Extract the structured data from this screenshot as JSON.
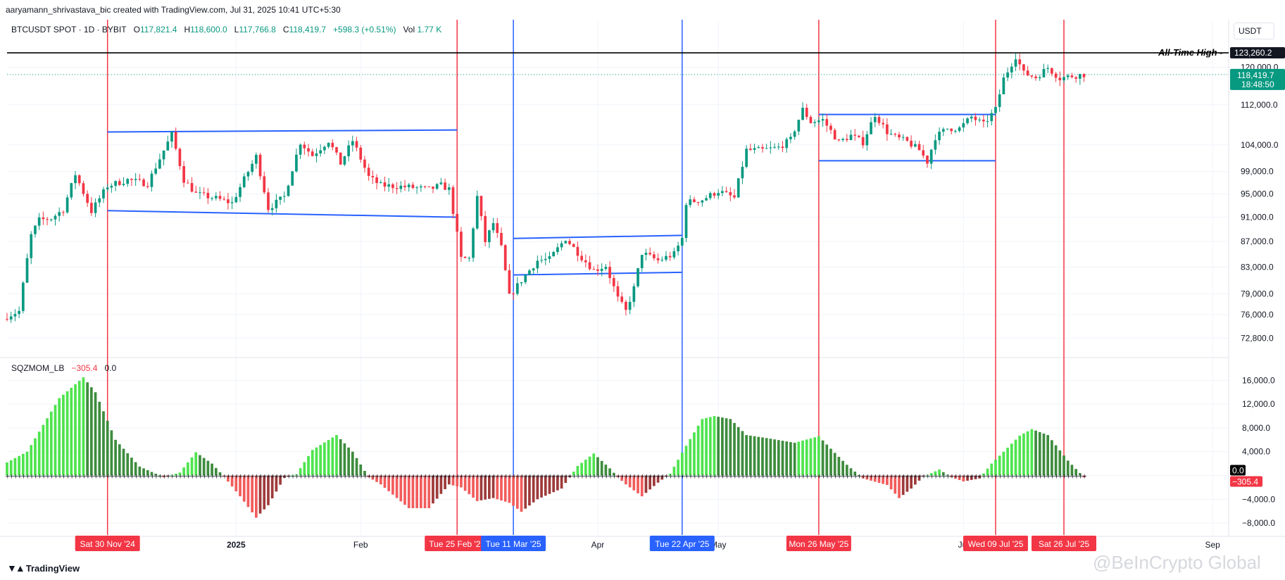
{
  "header": {
    "credit": "aaryamann_shrivastava_bic created with TradingView.com, Jul 31, 2025 10:41 UTC+5:30",
    "symbol": "BTCUSDT SPOT · 1D · BYBIT",
    "open_k": "O",
    "open": "117,821.4",
    "high_k": "H",
    "high": "118,600.0",
    "low_k": "L",
    "low": "117,766.8",
    "close_k": "C",
    "close": "118,419.7",
    "change": "+598.3 (+0.51%)",
    "vol_k": "Vol",
    "vol": "1.77 K",
    "currency": "USDT"
  },
  "indicator_header": {
    "name": "SQZMOM_LB",
    "value1": "−305.4",
    "value2": "0.0"
  },
  "footer": {
    "logo": "TradingView",
    "watermark": "@BeInCrypto Global"
  },
  "colors": {
    "up": "#089981",
    "down": "#f23645",
    "channel": "#2962ff",
    "event_red": "#f23645",
    "event_blue": "#2962ff",
    "hist_lime": "#4ee44e",
    "hist_green": "#3d8c3d",
    "hist_red": "#f25c5c",
    "hist_maroon": "#9e3a3a"
  },
  "chart_data": [
    {
      "type": "candlestick",
      "title": "BTCUSDT SPOT · 1D · BYBIT",
      "y_scale": "log",
      "ylim": [
        70500,
        129000
      ],
      "y_ticks": [
        {
          "value": 120000,
          "label": "120,000.0"
        },
        {
          "value": 112000,
          "label": "112,000.0"
        },
        {
          "value": 104000,
          "label": "104,000.0"
        },
        {
          "value": 99000,
          "label": "99,000.0"
        },
        {
          "value": 95000,
          "label": "95,000.0"
        },
        {
          "value": 91000,
          "label": "91,000.0"
        },
        {
          "value": 87000,
          "label": "87,000.0"
        },
        {
          "value": 83000,
          "label": "83,000.0"
        },
        {
          "value": 79000,
          "label": "79,000.0"
        },
        {
          "value": 76000,
          "label": "76,000.0"
        },
        {
          "value": 72800,
          "label": "72,800.0"
        }
      ],
      "x_range": [
        "2024-11-05",
        "2025-09-05"
      ],
      "x_labels": [
        {
          "date": "2025-01-01",
          "label": "2025",
          "bold": true
        },
        {
          "date": "2025-02-01",
          "label": "Feb"
        },
        {
          "date": "2025-04-01",
          "label": "Apr"
        },
        {
          "date": "2025-05-01",
          "label": "May"
        },
        {
          "date": "2025-07-01",
          "label": "Jul"
        },
        {
          "date": "2025-09-01",
          "label": "Sep"
        }
      ],
      "anchors": [
        [
          "2024-11-05",
          75800
        ],
        [
          "2024-11-08",
          76500
        ],
        [
          "2024-11-11",
          88000
        ],
        [
          "2024-11-13",
          90500
        ],
        [
          "2024-11-16",
          90800
        ],
        [
          "2024-11-19",
          92300
        ],
        [
          "2024-11-22",
          98500
        ],
        [
          "2024-11-26",
          92000
        ],
        [
          "2024-11-30",
          96400
        ],
        [
          "2024-12-05",
          97500
        ],
        [
          "2024-12-10",
          96800
        ],
        [
          "2024-12-16",
          106000
        ],
        [
          "2024-12-19",
          97500
        ],
        [
          "2024-12-22",
          95000
        ],
        [
          "2024-12-27",
          94200
        ],
        [
          "2024-12-31",
          93400
        ],
        [
          "2025-01-06",
          101800
        ],
        [
          "2025-01-09",
          92500
        ],
        [
          "2025-01-13",
          94500
        ],
        [
          "2025-01-17",
          104500
        ],
        [
          "2025-01-20",
          102000
        ],
        [
          "2025-01-24",
          104800
        ],
        [
          "2025-01-27",
          100500
        ],
        [
          "2025-01-30",
          104800
        ],
        [
          "2025-02-03",
          98000
        ],
        [
          "2025-02-06",
          96500
        ],
        [
          "2025-02-13",
          96200
        ],
        [
          "2025-02-18",
          95800
        ],
        [
          "2025-02-21",
          96500
        ],
        [
          "2025-02-23",
          95800
        ],
        [
          "2025-02-26",
          84300
        ],
        [
          "2025-02-28",
          84300
        ],
        [
          "2025-03-02",
          94500
        ],
        [
          "2025-03-04",
          87000
        ],
        [
          "2025-03-06",
          90000
        ],
        [
          "2025-03-08",
          86000
        ],
        [
          "2025-03-10",
          78600
        ],
        [
          "2025-03-13",
          81000
        ],
        [
          "2025-03-17",
          84000
        ],
        [
          "2025-03-20",
          84200
        ],
        [
          "2025-03-24",
          87500
        ],
        [
          "2025-03-28",
          84500
        ],
        [
          "2025-03-31",
          82500
        ],
        [
          "2025-04-03",
          83200
        ],
        [
          "2025-04-06",
          78300
        ],
        [
          "2025-04-08",
          76500
        ],
        [
          "2025-04-10",
          79800
        ],
        [
          "2025-04-12",
          85200
        ],
        [
          "2025-04-16",
          84000
        ],
        [
          "2025-04-20",
          85000
        ],
        [
          "2025-04-22",
          87500
        ],
        [
          "2025-04-23",
          93500
        ],
        [
          "2025-04-27",
          94000
        ],
        [
          "2025-05-01",
          95500
        ],
        [
          "2025-05-05",
          94300
        ],
        [
          "2025-05-08",
          103000
        ],
        [
          "2025-05-12",
          103000
        ],
        [
          "2025-05-16",
          103500
        ],
        [
          "2025-05-19",
          105000
        ],
        [
          "2025-05-22",
          111000
        ],
        [
          "2025-05-24",
          108500
        ],
        [
          "2025-05-27",
          108900
        ],
        [
          "2025-05-31",
          104500
        ],
        [
          "2025-06-03",
          105800
        ],
        [
          "2025-06-06",
          104500
        ],
        [
          "2025-06-09",
          110000
        ],
        [
          "2025-06-12",
          106500
        ],
        [
          "2025-06-14",
          105500
        ],
        [
          "2025-06-17",
          104600
        ],
        [
          "2025-06-20",
          103000
        ],
        [
          "2025-06-22",
          100800
        ],
        [
          "2025-06-24",
          105500
        ],
        [
          "2025-06-27",
          107200
        ],
        [
          "2025-06-30",
          107200
        ],
        [
          "2025-07-03",
          109500
        ],
        [
          "2025-07-06",
          108000
        ],
        [
          "2025-07-09",
          111000
        ],
        [
          "2025-07-11",
          117500
        ],
        [
          "2025-07-14",
          122500
        ],
        [
          "2025-07-16",
          118700
        ],
        [
          "2025-07-19",
          117800
        ],
        [
          "2025-07-22",
          119900
        ],
        [
          "2025-07-25",
          117600
        ],
        [
          "2025-07-28",
          118100
        ],
        [
          "2025-07-31",
          118420
        ]
      ],
      "annotations": {
        "all_time_high": {
          "value": 123260.2,
          "label": "All-Time High",
          "price_label": "123,260.2"
        },
        "last_price": {
          "value": 118419.7,
          "label": "118,419.7",
          "countdown": "18:48:50"
        },
        "channels": [
          {
            "from": "2024-11-30",
            "to": "2025-02-25",
            "upper": [
              106500,
              106900
            ],
            "lower": [
              92100,
              91000
            ]
          },
          {
            "from": "2025-03-11",
            "to": "2025-04-22",
            "upper": [
              87500,
              88000
            ],
            "lower": [
              81800,
              82200
            ]
          },
          {
            "from": "2025-05-26",
            "to": "2025-07-09",
            "upper": [
              110000,
              110000
            ],
            "lower": [
              101000,
              101000
            ]
          }
        ]
      }
    },
    {
      "type": "histogram",
      "title": "SQZMOM_LB",
      "ylim": [
        -10000,
        19000
      ],
      "y_ticks": [
        {
          "value": 16000,
          "label": "16,000.0"
        },
        {
          "value": 12000,
          "label": "12,000.0"
        },
        {
          "value": 8000,
          "label": "8,000.0"
        },
        {
          "value": 4000,
          "label": "4,000.0"
        },
        {
          "value": 0,
          "label": "0.0"
        },
        {
          "value": -4000,
          "label": "−4,000.0"
        },
        {
          "value": -8000,
          "label": "−8,000.0"
        }
      ],
      "last_value": {
        "value": -305.4,
        "label": "−305.4"
      },
      "zero_label": "0.0",
      "anchors": [
        [
          "2024-11-05",
          2200
        ],
        [
          "2024-11-10",
          4000
        ],
        [
          "2024-11-18",
          13000
        ],
        [
          "2024-11-24",
          16500
        ],
        [
          "2024-11-27",
          14000
        ],
        [
          "2024-12-02",
          6000
        ],
        [
          "2024-12-08",
          1500
        ],
        [
          "2024-12-14",
          -300
        ],
        [
          "2024-12-18",
          500
        ],
        [
          "2024-12-22",
          3900
        ],
        [
          "2024-12-26",
          2000
        ],
        [
          "2024-12-29",
          -200
        ],
        [
          "2025-01-02",
          -3500
        ],
        [
          "2025-01-06",
          -7100
        ],
        [
          "2025-01-09",
          -5000
        ],
        [
          "2025-01-13",
          -400
        ],
        [
          "2025-01-16",
          200
        ],
        [
          "2025-01-20",
          4300
        ],
        [
          "2025-01-26",
          6800
        ],
        [
          "2025-01-30",
          4000
        ],
        [
          "2025-02-03",
          -300
        ],
        [
          "2025-02-06",
          -1500
        ],
        [
          "2025-02-13",
          -5500
        ],
        [
          "2025-02-18",
          -5500
        ],
        [
          "2025-02-23",
          -1500
        ],
        [
          "2025-02-26",
          -2000
        ],
        [
          "2025-03-02",
          -4300
        ],
        [
          "2025-03-06",
          -3800
        ],
        [
          "2025-03-10",
          -4600
        ],
        [
          "2025-03-13",
          -6100
        ],
        [
          "2025-03-17",
          -4000
        ],
        [
          "2025-03-23",
          -2200
        ],
        [
          "2025-03-27",
          1600
        ],
        [
          "2025-03-31",
          3700
        ],
        [
          "2025-04-04",
          1200
        ],
        [
          "2025-04-06",
          -300
        ],
        [
          "2025-04-08",
          -1500
        ],
        [
          "2025-04-12",
          -3500
        ],
        [
          "2025-04-16",
          -1200
        ],
        [
          "2025-04-19",
          300
        ],
        [
          "2025-04-23",
          5000
        ],
        [
          "2025-04-27",
          9500
        ],
        [
          "2025-04-30",
          10000
        ],
        [
          "2025-05-04",
          9500
        ],
        [
          "2025-05-08",
          6800
        ],
        [
          "2025-05-13",
          6300
        ],
        [
          "2025-05-20",
          5500
        ],
        [
          "2025-05-26",
          6600
        ],
        [
          "2025-05-30",
          3800
        ],
        [
          "2025-06-02",
          1800
        ],
        [
          "2025-06-06",
          -500
        ],
        [
          "2025-06-12",
          -1600
        ],
        [
          "2025-06-15",
          -3800
        ],
        [
          "2025-06-18",
          -2200
        ],
        [
          "2025-06-21",
          -200
        ],
        [
          "2025-06-25",
          1000
        ],
        [
          "2025-06-28",
          -300
        ],
        [
          "2025-07-01",
          -1000
        ],
        [
          "2025-07-05",
          -500
        ],
        [
          "2025-07-08",
          2000
        ],
        [
          "2025-07-11",
          4000
        ],
        [
          "2025-07-15",
          6700
        ],
        [
          "2025-07-18",
          7800
        ],
        [
          "2025-07-22",
          6800
        ],
        [
          "2025-07-27",
          2500
        ],
        [
          "2025-07-31",
          -305
        ]
      ]
    }
  ],
  "events": [
    {
      "date": "2024-11-30",
      "label": "Sat 30 Nov '24",
      "color": "red"
    },
    {
      "date": "2025-02-25",
      "label": "Tue 25 Feb '25",
      "color": "red"
    },
    {
      "date": "2025-03-11",
      "label": "Tue 11 Mar '25",
      "color": "blue"
    },
    {
      "date": "2025-04-22",
      "label": "Tue 22 Apr '25",
      "color": "blue"
    },
    {
      "date": "2025-05-26",
      "label": "Mon 26 May '25",
      "color": "red"
    },
    {
      "date": "2025-07-09",
      "label": "Wed 09 Jul '25",
      "color": "red"
    },
    {
      "date": "2025-07-26",
      "label": "Sat 26 Jul '25",
      "color": "red"
    }
  ]
}
